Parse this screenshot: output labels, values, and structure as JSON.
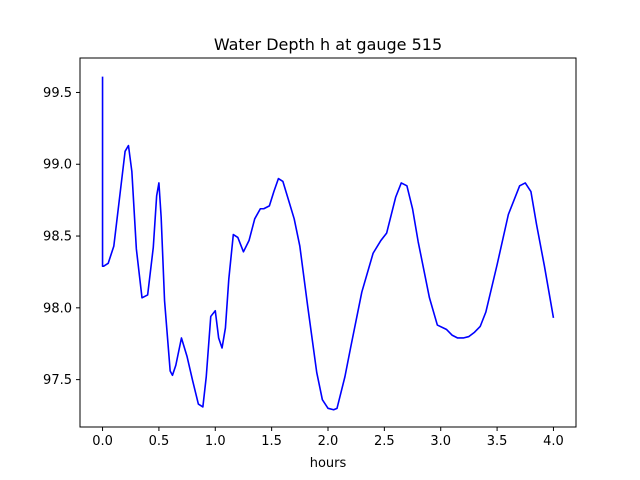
{
  "chart_data": {
    "type": "line",
    "title": "Water Depth h at gauge 515",
    "xlabel": "hours",
    "ylabel": "",
    "xlim": [
      -0.2,
      4.2
    ],
    "ylim": [
      97.17,
      99.74
    ],
    "xticks": [
      0.0,
      0.5,
      1.0,
      1.5,
      2.0,
      2.5,
      3.0,
      3.5,
      4.0
    ],
    "xtick_labels": [
      "0.0",
      "0.5",
      "1.0",
      "1.5",
      "2.0",
      "2.5",
      "3.0",
      "3.5",
      "4.0"
    ],
    "yticks": [
      97.5,
      98.0,
      98.5,
      99.0,
      99.5
    ],
    "ytick_labels": [
      "97.5",
      "98.0",
      "98.5",
      "99.0",
      "99.5"
    ],
    "grid": false,
    "legend": "none",
    "series": [
      {
        "color": "#0000ff",
        "x": [
          0.0,
          0.0,
          0.01,
          0.05,
          0.1,
          0.15,
          0.2,
          0.23,
          0.26,
          0.3,
          0.35,
          0.4,
          0.45,
          0.48,
          0.5,
          0.52,
          0.55,
          0.6,
          0.62,
          0.65,
          0.7,
          0.75,
          0.8,
          0.85,
          0.89,
          0.92,
          0.96,
          1.0,
          1.03,
          1.06,
          1.09,
          1.12,
          1.16,
          1.2,
          1.25,
          1.3,
          1.35,
          1.4,
          1.43,
          1.48,
          1.52,
          1.56,
          1.6,
          1.65,
          1.7,
          1.75,
          1.82,
          1.9,
          1.95,
          2.0,
          2.05,
          2.08,
          2.15,
          2.2,
          2.3,
          2.4,
          2.47,
          2.52,
          2.6,
          2.65,
          2.7,
          2.75,
          2.8,
          2.9,
          2.97,
          3.05,
          3.1,
          3.15,
          3.2,
          3.25,
          3.3,
          3.35,
          3.4,
          3.5,
          3.6,
          3.7,
          3.75,
          3.8,
          3.85,
          3.92,
          4.0
        ],
        "y": [
          99.61,
          98.29,
          98.29,
          98.31,
          98.43,
          98.76,
          99.09,
          99.13,
          98.95,
          98.41,
          98.07,
          98.09,
          98.42,
          98.78,
          98.87,
          98.63,
          98.05,
          97.56,
          97.53,
          97.6,
          97.79,
          97.66,
          97.49,
          97.33,
          97.31,
          97.52,
          97.94,
          97.98,
          97.79,
          97.72,
          97.86,
          98.2,
          98.51,
          98.49,
          98.39,
          98.47,
          98.62,
          98.69,
          98.69,
          98.71,
          98.81,
          98.9,
          98.88,
          98.75,
          98.62,
          98.43,
          98.01,
          97.55,
          97.36,
          97.3,
          97.29,
          97.3,
          97.52,
          97.72,
          98.11,
          98.38,
          98.47,
          98.52,
          98.77,
          98.87,
          98.85,
          98.69,
          98.46,
          98.07,
          97.88,
          97.85,
          97.81,
          97.79,
          97.79,
          97.8,
          97.83,
          97.87,
          97.97,
          98.3,
          98.65,
          98.85,
          98.87,
          98.81,
          98.58,
          98.29,
          97.93
        ]
      }
    ]
  }
}
